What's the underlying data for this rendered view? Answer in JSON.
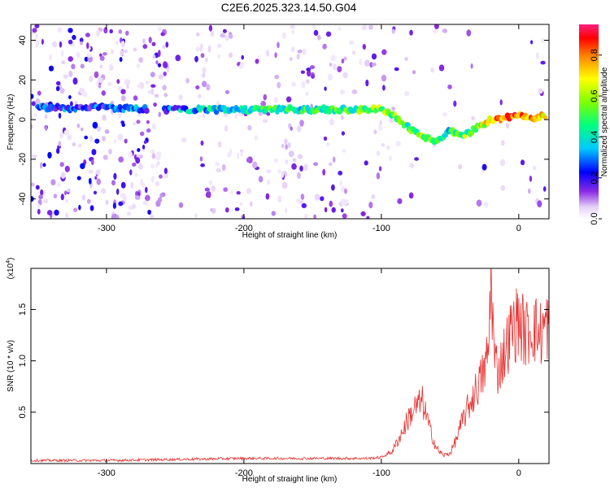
{
  "chart_data": [
    {
      "type": "heatmap",
      "title": "C2E6.2025.323.14.50.G04",
      "xlabel": "Height of straight line (km)",
      "ylabel": "Frequency (Hz)",
      "xlim": [
        -355,
        22
      ],
      "ylim": [
        -50,
        48
      ],
      "xticks": [
        -300,
        -200,
        -100,
        0
      ],
      "yticks": [
        -40,
        -20,
        0,
        20,
        40
      ],
      "colorbar": {
        "label": "Normalized spectral amplitude",
        "range": [
          0.0,
          0.95
        ],
        "ticks": [
          "0.0",
          "0.2",
          "0.4",
          "0.6",
          "0.8"
        ]
      },
      "ridge": {
        "description_points": [
          {
            "x": -350,
            "y": 6,
            "amp": 0.25
          },
          {
            "x": -300,
            "y": 6,
            "amp": 0.25
          },
          {
            "x": -255,
            "y": 5,
            "amp": 0.3
          },
          {
            "x": -200,
            "y": 5,
            "amp": 0.45
          },
          {
            "x": -160,
            "y": 5,
            "amp": 0.45
          },
          {
            "x": -120,
            "y": 5,
            "amp": 0.5
          },
          {
            "x": -100,
            "y": 5,
            "amp": 0.6
          },
          {
            "x": -90,
            "y": 2,
            "amp": 0.55
          },
          {
            "x": -80,
            "y": -4,
            "amp": 0.5
          },
          {
            "x": -70,
            "y": -8,
            "amp": 0.55
          },
          {
            "x": -60,
            "y": -11,
            "amp": 0.5
          },
          {
            "x": -50,
            "y": -6,
            "amp": 0.45
          },
          {
            "x": -40,
            "y": -8,
            "amp": 0.55
          },
          {
            "x": -30,
            "y": -4,
            "amp": 0.6
          },
          {
            "x": -20,
            "y": 0,
            "amp": 0.75
          },
          {
            "x": -10,
            "y": 1,
            "amp": 0.85
          },
          {
            "x": 0,
            "y": 2,
            "amp": 0.9
          },
          {
            "x": 10,
            "y": 1,
            "amp": 0.8
          },
          {
            "x": 20,
            "y": 2,
            "amp": 0.75
          }
        ]
      }
    },
    {
      "type": "line",
      "xlabel": "Height of straight line (km)",
      "ylabel": "SNR (10 * v/v)",
      "exponent_label": "(x10",
      "exponent_power": "4",
      "exponent_close": ")",
      "xlim": [
        -355,
        22
      ],
      "ylim": [
        0,
        1.9
      ],
      "xticks": [
        -300,
        -200,
        -100,
        0
      ],
      "yticks": [
        "0.5",
        "1.0",
        "1.5"
      ],
      "line_color": "#e83030",
      "series": [
        {
          "name": "SNR",
          "x": [
            -355,
            -300,
            -250,
            -200,
            -150,
            -110,
            -100,
            -92,
            -85,
            -80,
            -75,
            -70,
            -65,
            -60,
            -55,
            -50,
            -45,
            -40,
            -35,
            -30,
            -25,
            -22,
            -20,
            -18,
            -15,
            -10,
            -5,
            0,
            5,
            10,
            15,
            20
          ],
          "y": [
            0.03,
            0.03,
            0.04,
            0.05,
            0.05,
            0.05,
            0.06,
            0.12,
            0.3,
            0.45,
            0.55,
            0.6,
            0.35,
            0.15,
            0.08,
            0.1,
            0.25,
            0.45,
            0.6,
            0.75,
            0.9,
            1.1,
            1.9,
            1.05,
            0.9,
            1.1,
            1.3,
            1.4,
            1.25,
            1.35,
            1.25,
            1.35
          ]
        }
      ]
    }
  ]
}
